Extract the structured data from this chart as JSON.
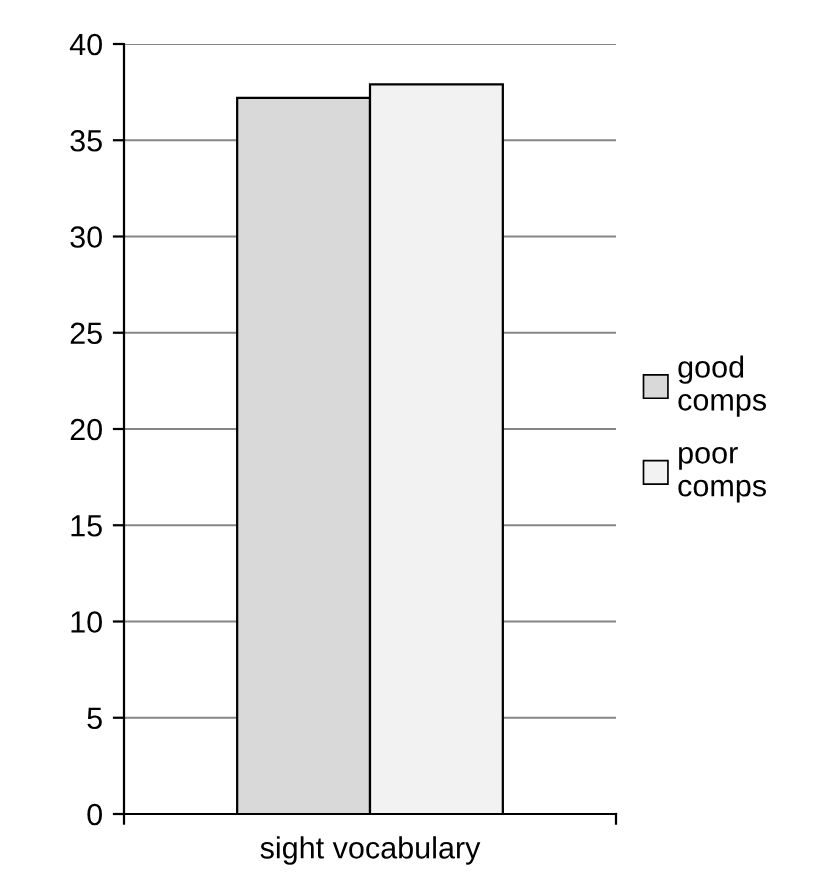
{
  "chart_data": {
    "type": "bar",
    "categories": [
      "sight vocabulary"
    ],
    "series": [
      {
        "name": "good comps",
        "color": "#d9d9d9",
        "values": [
          37.2
        ]
      },
      {
        "name": "poor comps",
        "color": "#f2f2f2",
        "values": [
          37.9
        ]
      }
    ],
    "ylim": [
      0,
      40
    ],
    "yticks": [
      0,
      5,
      10,
      15,
      20,
      25,
      30,
      35,
      40
    ],
    "grid": "y",
    "legend": "right"
  }
}
